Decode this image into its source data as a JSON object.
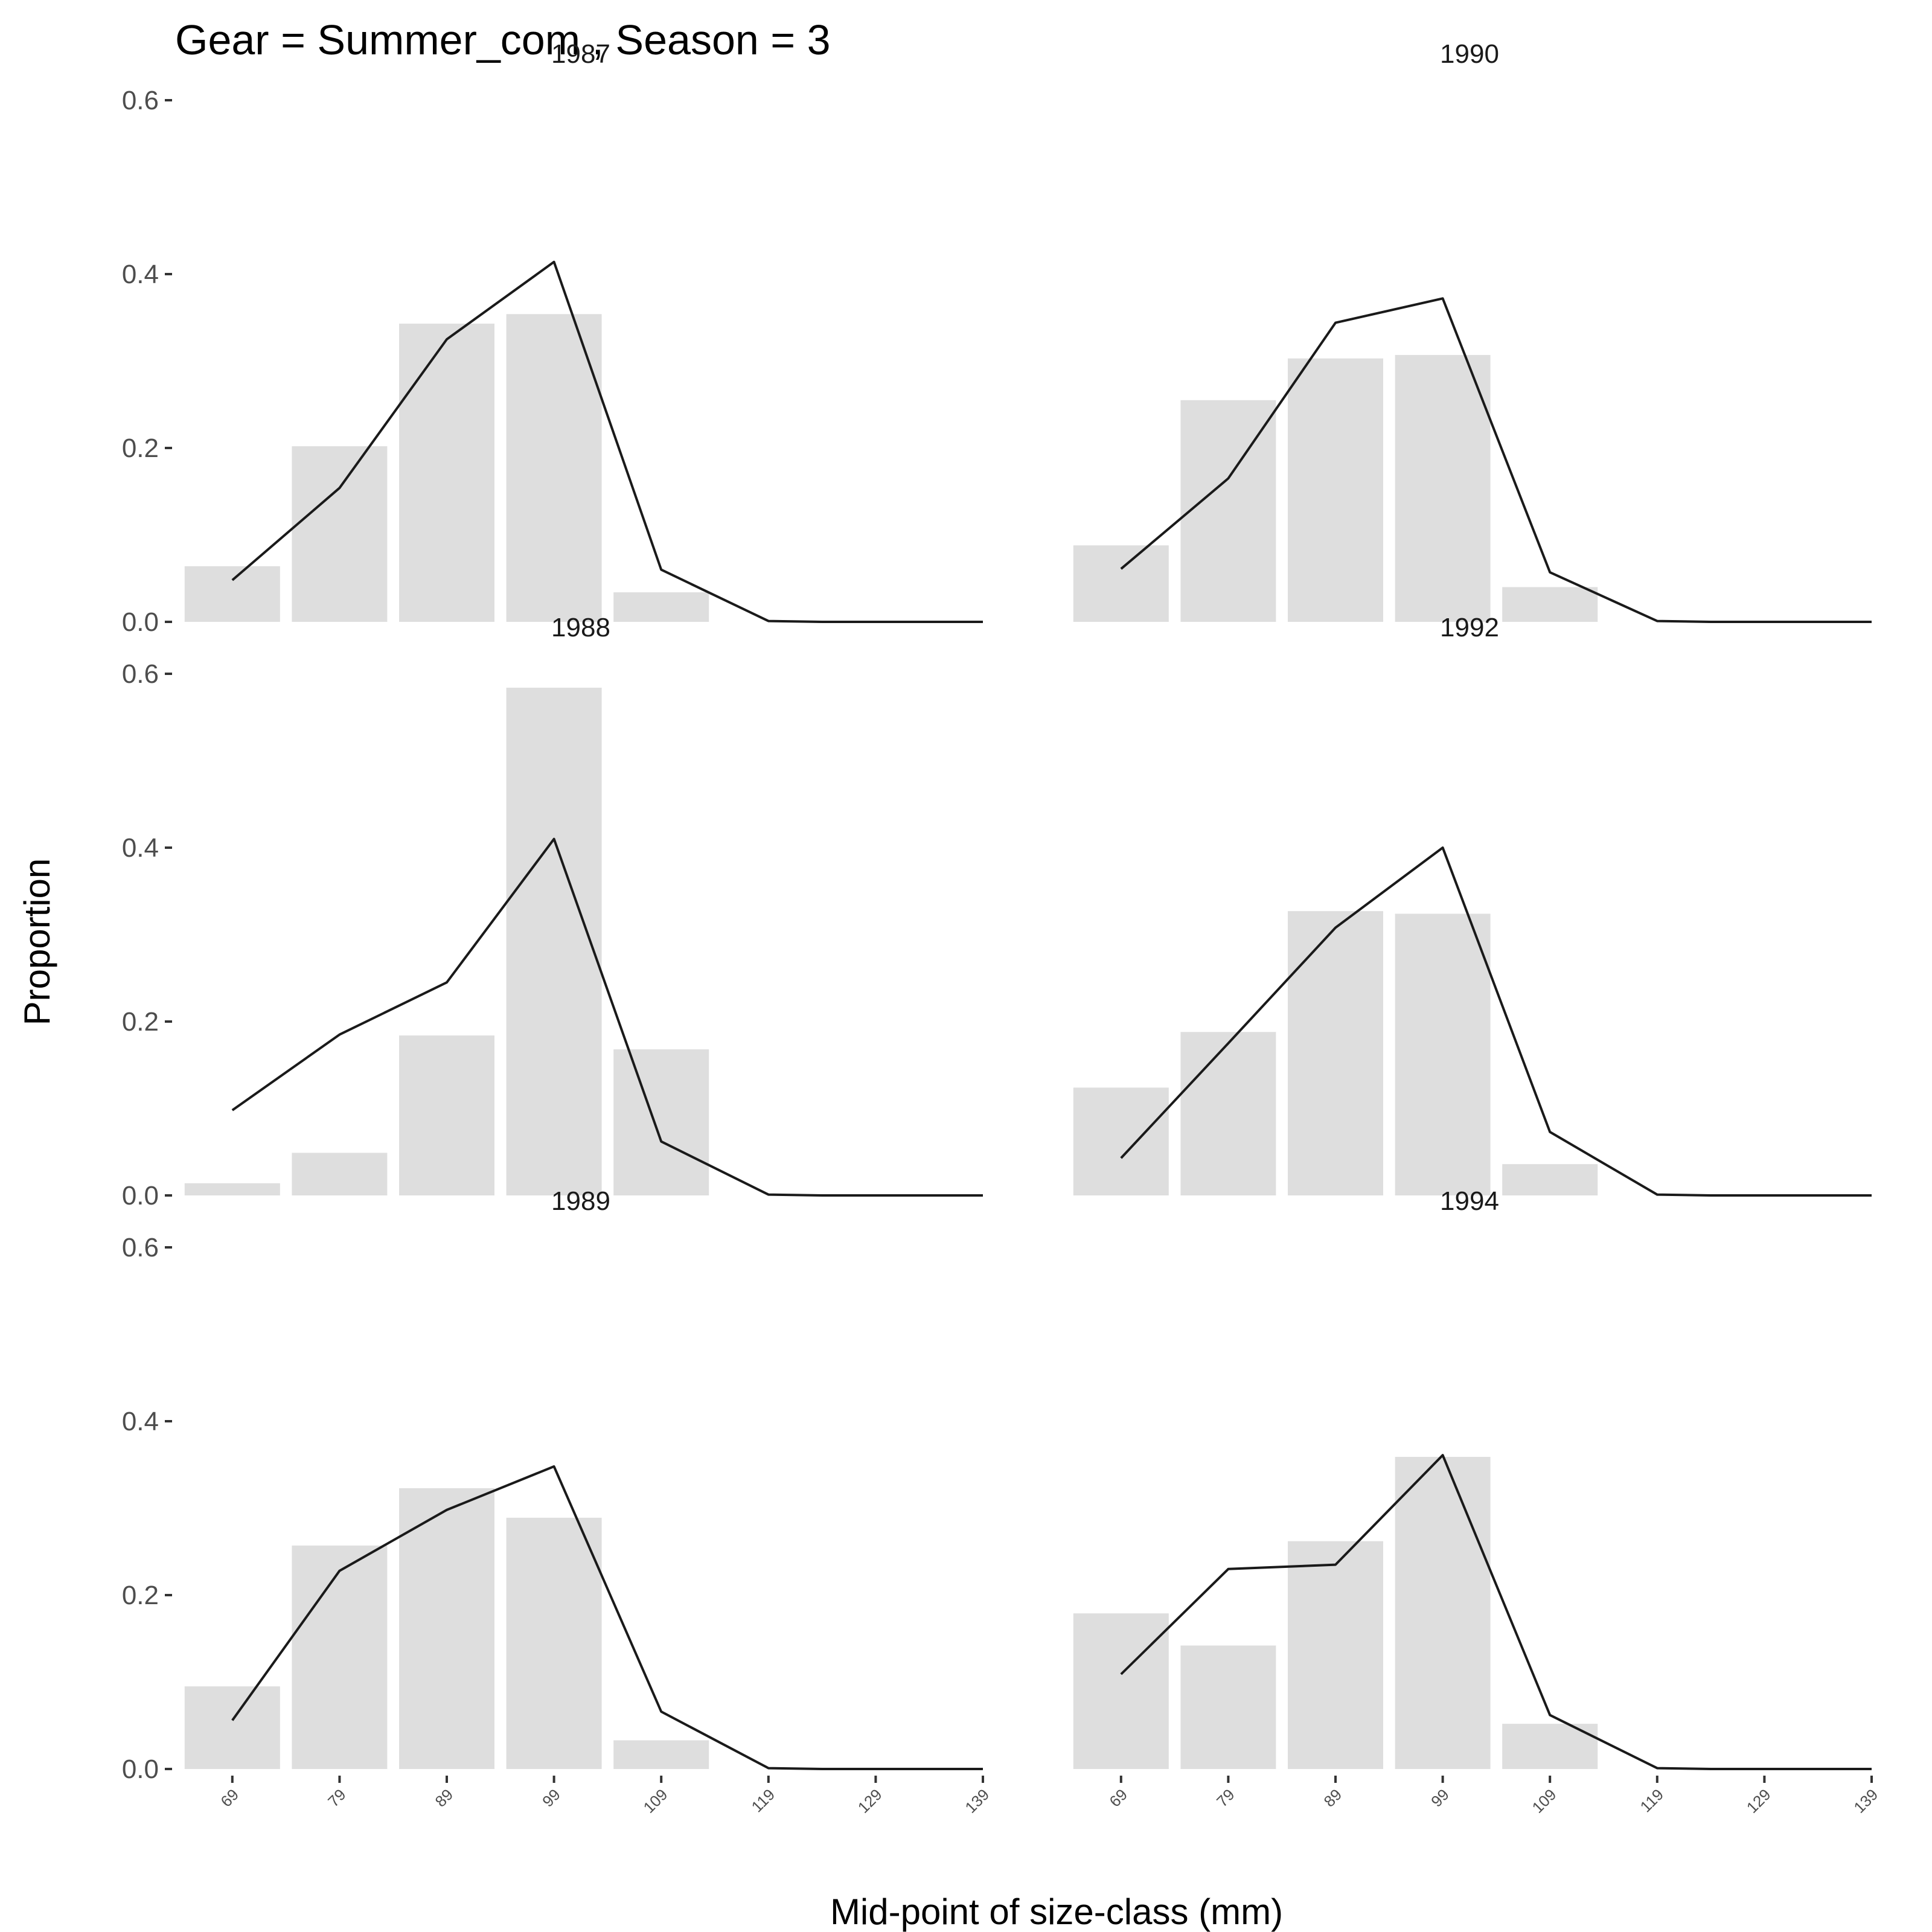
{
  "chart_data": {
    "type": "bar",
    "title": "Gear = Summer_com , Season = 3",
    "xlabel": "Mid-point of size-class (mm)",
    "ylabel": "Proportion",
    "x_ticks": [
      "69",
      "79",
      "89",
      "99",
      "109",
      "119",
      "129",
      "139"
    ],
    "y_ticks": [
      "0.0",
      "0.2",
      "0.4",
      "0.6"
    ],
    "ylim": [
      0,
      0.6
    ],
    "xlim": [
      64,
      139
    ],
    "grid": false,
    "legend": "none",
    "colors": {
      "bars": "#dedede",
      "line": "#1a1a1a"
    },
    "panels": [
      {
        "label": "1987",
        "bars": {
          "x": [
            69,
            79,
            89,
            99,
            109
          ],
          "values": [
            0.064,
            0.202,
            0.343,
            0.354,
            0.034
          ]
        },
        "line": {
          "x": [
            69,
            79,
            89,
            99,
            109,
            119,
            124,
            139
          ],
          "values": [
            0.048,
            0.154,
            0.325,
            0.414,
            0.06,
            0.001,
            0.0,
            0.0
          ]
        }
      },
      {
        "label": "1990",
        "bars": {
          "x": [
            69,
            79,
            89,
            99,
            109
          ],
          "values": [
            0.088,
            0.255,
            0.303,
            0.307,
            0.04
          ]
        },
        "line": {
          "x": [
            69,
            79,
            89,
            99,
            109,
            119,
            124,
            139
          ],
          "values": [
            0.061,
            0.165,
            0.344,
            0.372,
            0.057,
            0.001,
            0.0,
            0.0
          ]
        }
      },
      {
        "label": "1988",
        "bars": {
          "x": [
            69,
            79,
            89,
            99,
            109
          ],
          "values": [
            0.014,
            0.049,
            0.184,
            0.584,
            0.168
          ]
        },
        "line": {
          "x": [
            69,
            79,
            89,
            99,
            109,
            119,
            124,
            139
          ],
          "values": [
            0.098,
            0.185,
            0.245,
            0.41,
            0.062,
            0.001,
            0.0,
            0.0
          ]
        }
      },
      {
        "label": "1992",
        "bars": {
          "x": [
            69,
            79,
            89,
            99,
            109
          ],
          "values": [
            0.124,
            0.188,
            0.327,
            0.324,
            0.036
          ]
        },
        "line": {
          "x": [
            69,
            79,
            89,
            99,
            109,
            119,
            124,
            139
          ],
          "values": [
            0.043,
            0.175,
            0.308,
            0.4,
            0.073,
            0.001,
            0.0,
            0.0
          ]
        }
      },
      {
        "label": "1989",
        "bars": {
          "x": [
            69,
            79,
            89,
            99,
            109
          ],
          "values": [
            0.095,
            0.257,
            0.323,
            0.289,
            0.033
          ]
        },
        "line": {
          "x": [
            69,
            79,
            89,
            99,
            109,
            119,
            124,
            139
          ],
          "values": [
            0.056,
            0.228,
            0.298,
            0.348,
            0.066,
            0.001,
            0.0,
            0.0
          ]
        }
      },
      {
        "label": "1994",
        "bars": {
          "x": [
            69,
            79,
            89,
            99,
            109
          ],
          "values": [
            0.179,
            0.142,
            0.262,
            0.359,
            0.052
          ]
        },
        "line": {
          "x": [
            69,
            79,
            89,
            99,
            109,
            119,
            124,
            139
          ],
          "values": [
            0.109,
            0.23,
            0.235,
            0.361,
            0.062,
            0.001,
            0.0,
            0.0
          ]
        }
      }
    ]
  }
}
